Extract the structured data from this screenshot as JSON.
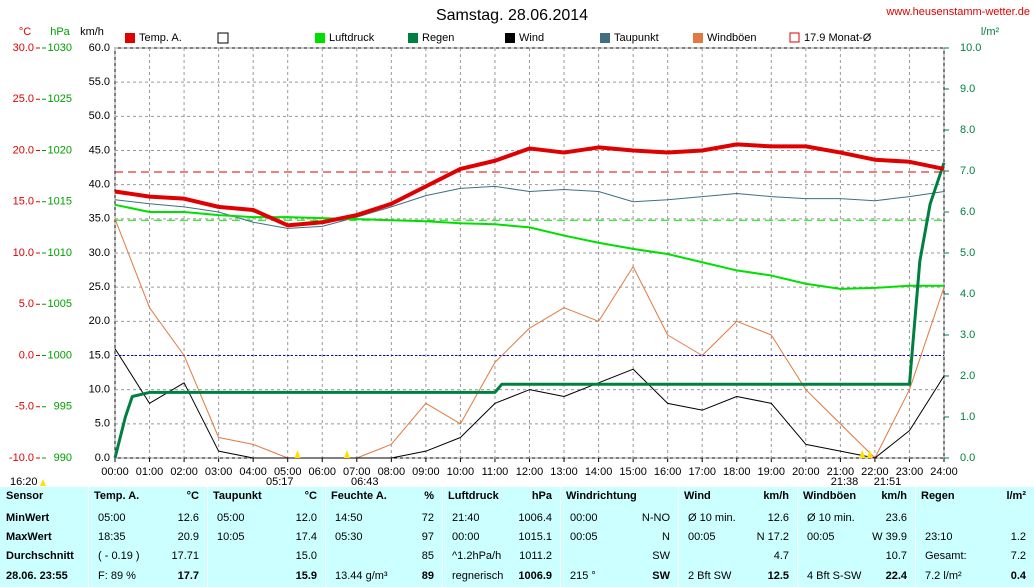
{
  "chart_data": {
    "type": "line",
    "title": "Samstag. 28.06.2014",
    "site": "www.heusenstamm-wetter.de",
    "axis_labels": {
      "y": "°C",
      "y_hpa": "hPa",
      "y_kmh": "km/h",
      "y2": "l/m²"
    },
    "xlim": [
      0,
      24
    ],
    "xticks": [
      {
        "value": 0,
        "label": "00:00"
      },
      {
        "value": 1,
        "label": "01:00"
      },
      {
        "value": 2,
        "label": "02:00"
      },
      {
        "value": 3,
        "label": "03:00"
      },
      {
        "value": 4,
        "label": "04:00"
      },
      {
        "value": 5,
        "label": "05:00"
      },
      {
        "value": 6,
        "label": "06:00"
      },
      {
        "value": 7,
        "label": "07:00"
      },
      {
        "value": 8,
        "label": "08:00"
      },
      {
        "value": 9,
        "label": "09:00"
      },
      {
        "value": 10,
        "label": "10:00"
      },
      {
        "value": 11,
        "label": "11:00"
      },
      {
        "value": 12,
        "label": "12:00"
      },
      {
        "value": 13,
        "label": "13:00"
      },
      {
        "value": 14,
        "label": "14:00"
      },
      {
        "value": 15,
        "label": "15:00"
      },
      {
        "value": 16,
        "label": "16:00"
      },
      {
        "value": 17,
        "label": "17:00"
      },
      {
        "value": 18,
        "label": "18:00"
      },
      {
        "value": 19,
        "label": "19:00"
      },
      {
        "value": 20,
        "label": "20:00"
      },
      {
        "value": 21,
        "label": "21:00"
      },
      {
        "value": 22,
        "label": "22:00"
      },
      {
        "value": 23,
        "label": "23:00"
      },
      {
        "value": 24,
        "label": "24:00"
      }
    ],
    "ylim": [
      -10,
      30
    ],
    "yticks": [
      {
        "value": -10,
        "label": "-10.0"
      },
      {
        "value": -5,
        "label": "-5.0"
      },
      {
        "value": 0,
        "label": "0.0"
      },
      {
        "value": 5,
        "label": "5.0"
      },
      {
        "value": 10,
        "label": "10.0"
      },
      {
        "value": 15,
        "label": "15.0"
      },
      {
        "value": 20,
        "label": "20.0"
      },
      {
        "value": 25,
        "label": "25.0"
      },
      {
        "value": 30,
        "label": "30.0"
      }
    ],
    "hpa_lim": [
      990,
      1030
    ],
    "hpa_ticks": [
      990,
      995,
      1000,
      1005,
      1010,
      1015,
      1020,
      1025,
      1030
    ],
    "kmh_lim": [
      0,
      60
    ],
    "kmh_ticks": [
      {
        "value": 0,
        "label": "0.0"
      },
      {
        "value": 5,
        "label": "5.0"
      },
      {
        "value": 10,
        "label": "10.0"
      },
      {
        "value": 15,
        "label": "15.0"
      },
      {
        "value": 20,
        "label": "20.0"
      },
      {
        "value": 25,
        "label": "25.0"
      },
      {
        "value": 30,
        "label": "30.0"
      },
      {
        "value": 35,
        "label": "35.0"
      },
      {
        "value": 40,
        "label": "40.0"
      },
      {
        "value": 45,
        "label": "45.0"
      },
      {
        "value": 50,
        "label": "50.0"
      },
      {
        "value": 55,
        "label": "55.0"
      },
      {
        "value": 60,
        "label": "60.0"
      }
    ],
    "y2lim": [
      0,
      10
    ],
    "y2ticks": [
      {
        "value": 0,
        "label": "0.0"
      },
      {
        "value": 1,
        "label": "1.0"
      },
      {
        "value": 2,
        "label": "2.0"
      },
      {
        "value": 3,
        "label": "3.0"
      },
      {
        "value": 4,
        "label": "4.0"
      },
      {
        "value": 5,
        "label": "5.0"
      },
      {
        "value": 6,
        "label": "6.0"
      },
      {
        "value": 7,
        "label": "7.0"
      },
      {
        "value": 8,
        "label": "8.0"
      },
      {
        "value": 9,
        "label": "9.0"
      },
      {
        "value": 10,
        "label": "10.0"
      }
    ],
    "grid": true,
    "zero_line": true,
    "x": [
      0,
      1,
      2,
      3,
      4,
      5,
      6,
      7,
      8,
      9,
      10,
      11,
      12,
      13,
      14,
      15,
      16,
      17,
      18,
      19,
      20,
      21,
      22,
      23,
      24
    ],
    "series": [
      {
        "name": "Windböen",
        "color": "#e07a40",
        "width": 1,
        "axis": "y_kmh",
        "values": [
          35,
          22,
          15,
          3,
          2,
          0,
          0,
          0,
          2,
          8,
          5,
          14,
          19,
          22,
          20,
          28,
          18,
          15,
          20,
          18,
          10,
          5,
          0,
          10,
          25
        ]
      },
      {
        "name": "Wind",
        "color": "#000000",
        "width": 1,
        "axis": "y_kmh",
        "values": [
          16,
          8,
          11,
          1,
          0,
          0,
          0,
          0,
          0,
          1,
          3,
          8,
          10,
          9,
          11,
          13,
          8,
          7,
          9,
          8,
          2,
          1,
          0,
          4,
          12
        ]
      },
      {
        "name": "Taupunkt",
        "color": "#3f7080",
        "width": 1,
        "axis": "y",
        "values": [
          15.2,
          14.8,
          14.5,
          14.0,
          13.0,
          12.4,
          12.6,
          13.5,
          14.5,
          15.6,
          16.3,
          16.5,
          16.0,
          16.2,
          16.0,
          15.0,
          15.2,
          15.5,
          15.8,
          15.5,
          15.3,
          15.3,
          15.1,
          15.5,
          16.0
        ]
      },
      {
        "name": "Luftdruck",
        "color": "#00e000",
        "width": 2,
        "axis": "y_hpa",
        "values": [
          1014.7,
          1014.0,
          1014.0,
          1013.7,
          1013.5,
          1013.5,
          1013.4,
          1013.3,
          1013.2,
          1013.1,
          1012.9,
          1012.8,
          1012.5,
          1011.7,
          1011.0,
          1010.4,
          1009.9,
          1009.1,
          1008.3,
          1007.8,
          1007.0,
          1006.5,
          1006.6,
          1006.8,
          1006.8
        ]
      },
      {
        "name": "Regen",
        "color": "#008040",
        "width": 3,
        "axis": "y2",
        "x": [
          0,
          0.3,
          0.5,
          1,
          11,
          11.2,
          23,
          23.3,
          23.6,
          24
        ],
        "values": [
          0,
          1.0,
          1.5,
          1.6,
          1.6,
          1.8,
          1.8,
          4.8,
          6.2,
          7.2
        ]
      },
      {
        "name": "Temp. A.",
        "color": "#e00000",
        "width": 4,
        "axis": "y",
        "values": [
          16.0,
          15.5,
          15.3,
          14.5,
          14.2,
          12.7,
          13.0,
          13.7,
          14.8,
          16.5,
          18.2,
          19.0,
          20.2,
          19.8,
          20.3,
          20.0,
          19.8,
          20.0,
          20.6,
          20.4,
          20.4,
          19.8,
          19.1,
          18.9,
          18.2
        ]
      }
    ],
    "reference": {
      "name": "17.9 Monat-Ø",
      "value": 17.9,
      "color": "#e00000"
    },
    "hpa_reference": 1013.2,
    "time_markers": [
      "16:20",
      "05:17",
      "06:43",
      "21:38",
      "21:51"
    ],
    "table": {
      "columns": [
        [
          "Sensor",
          null
        ],
        [
          "Temp. A.",
          "°C"
        ],
        [
          "Taupunkt",
          "°C"
        ],
        [
          "Feuchte A.",
          "%"
        ],
        [
          "Luftdruck",
          "hPa"
        ],
        [
          "Windrichtung",
          null
        ],
        [
          "Wind",
          "km/h"
        ],
        [
          "Windböen",
          "km/h"
        ],
        [
          "Regen",
          "l/m²"
        ]
      ],
      "rows": [
        [
          [
            "MinWert",
            null
          ],
          [
            "05:00",
            "12.6"
          ],
          [
            "05:00",
            "12.0"
          ],
          [
            "14:50",
            "72"
          ],
          [
            "21:40",
            "1006.4"
          ],
          [
            "00:00",
            "N-NO"
          ],
          [
            "Ø 10 min.",
            "12.6"
          ],
          [
            "Ø 10 min.",
            "23.6"
          ],
          [
            null,
            null
          ]
        ],
        [
          [
            "MaxWert",
            null
          ],
          [
            "18:35",
            "20.9"
          ],
          [
            "10:05",
            "17.4"
          ],
          [
            "05:30",
            "97"
          ],
          [
            "00:00",
            "1015.1"
          ],
          [
            "00:05",
            "N"
          ],
          [
            "00:05",
            "N 17.2"
          ],
          [
            "00:05",
            "W 39.9"
          ],
          [
            "23:10",
            "1.2"
          ]
        ],
        [
          [
            "Durchschnitt",
            null
          ],
          [
            "( - 0.19 )",
            "17.71"
          ],
          [
            null,
            "15.0"
          ],
          [
            null,
            "85"
          ],
          [
            "^1.2hPa/h",
            "1011.2"
          ],
          [
            null,
            "SW"
          ],
          [
            null,
            "4.7"
          ],
          [
            null,
            "10.7"
          ],
          [
            "Gesamt:",
            "7.2"
          ]
        ],
        [
          [
            "28.06. 23:55",
            null
          ],
          [
            "F: 89 %",
            "17.7"
          ],
          [
            null,
            "15.9"
          ],
          [
            "13.44 g/m³",
            "89"
          ],
          [
            "regnerisch",
            "1006.9"
          ],
          [
            "215 °",
            "SW"
          ],
          [
            "2 Bft SW",
            "12.5"
          ],
          [
            "4 Bft S-SW",
            "22.4"
          ],
          [
            "7.2 l/m²",
            "0.4"
          ]
        ]
      ]
    }
  }
}
